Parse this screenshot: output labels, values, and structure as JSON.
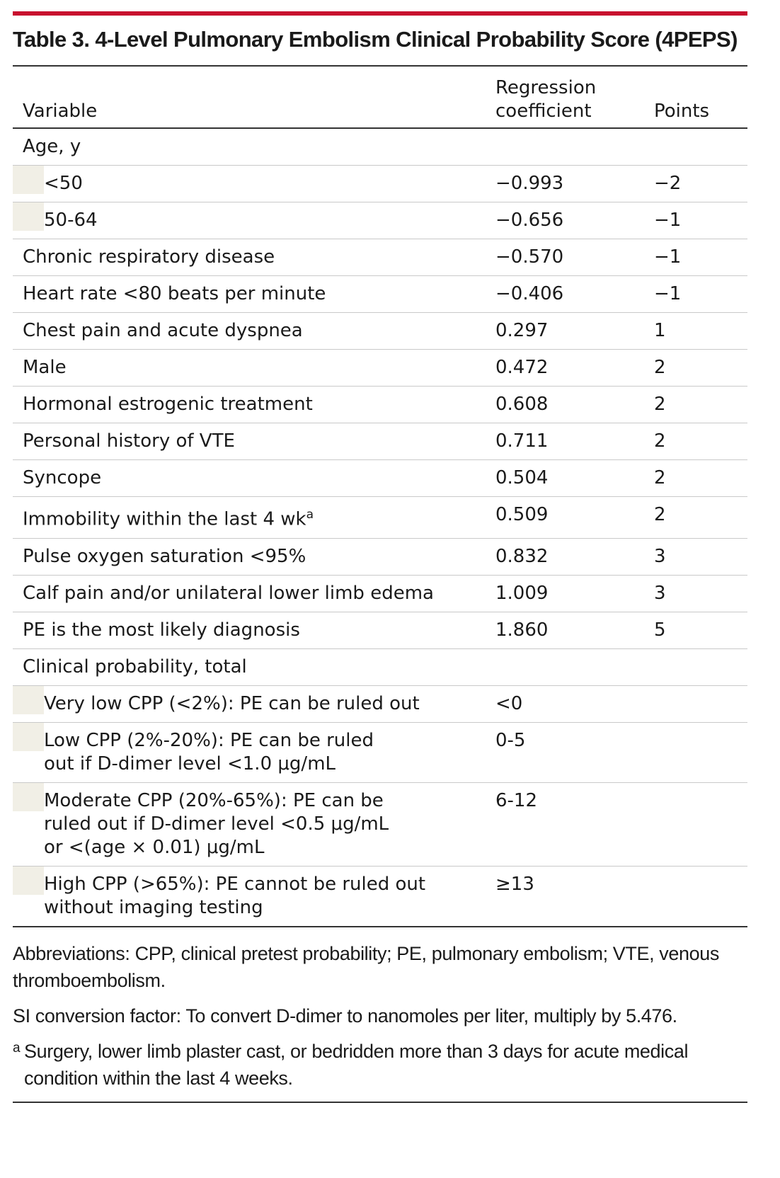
{
  "title": "Table 3. 4-Level Pulmonary Embolism Clinical Probability Score (4PEPS)",
  "headers": {
    "variable": "Variable",
    "coefficient_line1": "Regression",
    "coefficient_line2": "coefficient",
    "points": "Points"
  },
  "rows": [
    {
      "variable": "Age, y",
      "coefficient": "",
      "points": "",
      "sub": false
    },
    {
      "variable": "<50",
      "coefficient": "−0.993",
      "points": "−2",
      "sub": true
    },
    {
      "variable": "50-64",
      "coefficient": "−0.656",
      "points": "−1",
      "sub": true
    },
    {
      "variable": "Chronic respiratory disease",
      "coefficient": "−0.570",
      "points": "−1",
      "sub": false
    },
    {
      "variable": "Heart rate <80 beats per minute",
      "coefficient": "−0.406",
      "points": "−1",
      "sub": false
    },
    {
      "variable": "Chest pain and acute dyspnea",
      "coefficient": "0.297",
      "points": "1",
      "sub": false
    },
    {
      "variable": "Male",
      "coefficient": "0.472",
      "points": "2",
      "sub": false
    },
    {
      "variable": "Hormonal estrogenic treatment",
      "coefficient": "0.608",
      "points": "2",
      "sub": false
    },
    {
      "variable": "Personal history of VTE",
      "coefficient": "0.711",
      "points": "2",
      "sub": false
    },
    {
      "variable": "Syncope",
      "coefficient": "0.504",
      "points": "2",
      "sub": false
    },
    {
      "variable": "Immobility within the last 4 wk",
      "superscript": "a",
      "coefficient": "0.509",
      "points": "2",
      "sub": false
    },
    {
      "variable": "Pulse oxygen saturation <95%",
      "coefficient": "0.832",
      "points": "3",
      "sub": false
    },
    {
      "variable": "Calf pain and/or unilateral lower limb edema",
      "coefficient": "1.009",
      "points": "3",
      "sub": false
    },
    {
      "variable": "PE is the most likely diagnosis",
      "coefficient": "1.860",
      "points": "5",
      "sub": false
    },
    {
      "variable": "Clinical probability, total",
      "coefficient": "",
      "points": "",
      "sub": false
    },
    {
      "variable": "Very low CPP (<2%): PE can be ruled out",
      "coefficient": "<0",
      "points": "",
      "sub": true
    },
    {
      "variable": "Low CPP (2%-20%): PE can be ruled\nout if D-dimer level <1.0 μg/mL",
      "coefficient": "0-5",
      "points": "",
      "sub": true
    },
    {
      "variable": "Moderate CPP (20%-65%): PE can be\nruled out if D-dimer level <0.5 μg/mL\nor <(age × 0.01) μg/mL",
      "coefficient": "6-12",
      "points": "",
      "sub": true
    },
    {
      "variable": "High CPP (>65%): PE cannot be ruled out\nwithout imaging testing",
      "coefficient": "≥13",
      "points": "",
      "sub": true
    }
  ],
  "notes": {
    "abbreviations": "Abbreviations: CPP, clinical pretest probability; PE, pulmonary embolism; VTE, venous thromboembolism.",
    "si_conversion": "SI conversion factor: To convert D-dimer to nanomoles per liter, multiply by 5.476.",
    "footnote_mark": "a",
    "footnote": "Surgery, lower limb plaster cast, or bedridden more than 3 days for acute medical condition within the last 4 weeks."
  },
  "colors": {
    "accent_rule": "#c8102e",
    "indent_shade": "#f1efe6"
  }
}
